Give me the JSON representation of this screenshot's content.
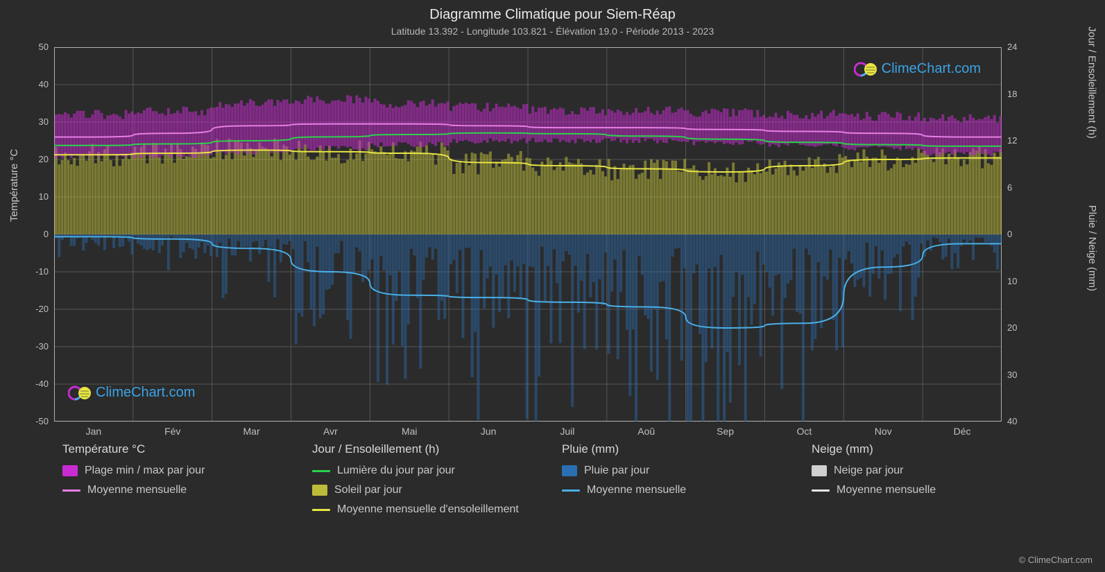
{
  "title": "Diagramme Climatique pour Siem-Réap",
  "subtitle": "Latitude 13.392 - Longitude 103.821 - Élévation 19.0 - Période 2013 - 2023",
  "axis_left_label": "Température °C",
  "axis_right_top_label": "Jour / Ensoleillement (h)",
  "axis_right_bot_label": "Pluie / Neige (mm)",
  "brand_text": "ClimeChart.com",
  "copyright": "© ClimeChart.com",
  "chart": {
    "background": "#2b2b2b",
    "plot_bg": "#2b2b2b",
    "grid_color": "#8a8a8a",
    "grid_opacity": 0.45,
    "border_color": "#b0b0b0",
    "text_color": "#c8c8c8",
    "months": [
      "Jan",
      "Fév",
      "Mar",
      "Avr",
      "Mai",
      "Jun",
      "Juil",
      "Aoû",
      "Sep",
      "Oct",
      "Nov",
      "Déc"
    ],
    "y_left": {
      "min": -50,
      "max": 50,
      "step": 10
    },
    "y_right_top": {
      "min": 0,
      "max": 24,
      "step": 6
    },
    "y_right_bot": {
      "min": 0,
      "max": 40,
      "step": 10
    },
    "series": {
      "temp_range": {
        "min": [
          21,
          21,
          22,
          23,
          24,
          25,
          25,
          25,
          24.5,
          24,
          23,
          21.5
        ],
        "max": [
          32,
          33,
          35,
          36,
          35,
          34,
          33,
          33,
          32.5,
          32,
          31.5,
          31
        ],
        "fill": "#c92bd3",
        "opacity": 0.55
      },
      "temp_mean": {
        "values": [
          26,
          27,
          29,
          29.5,
          29.5,
          29,
          28.5,
          28.5,
          28,
          27.5,
          27,
          26
        ],
        "color": "#e77fe4",
        "width": 2
      },
      "daylight": {
        "values": [
          11.4,
          11.6,
          12.0,
          12.5,
          12.8,
          13.0,
          12.9,
          12.6,
          12.2,
          11.8,
          11.5,
          11.3
        ],
        "color": "#2bd34a",
        "width": 2
      },
      "sun_fill": {
        "values": [
          10.2,
          10.4,
          10.8,
          10.6,
          10.4,
          9.2,
          8.8,
          8.4,
          8.0,
          8.8,
          9.6,
          9.8
        ],
        "fill": "#bdbb3a",
        "opacity": 0.55
      },
      "sun_mean": {
        "values": [
          10.2,
          10.4,
          10.8,
          10.6,
          10.4,
          9.2,
          8.8,
          8.4,
          8.0,
          8.8,
          9.6,
          9.8
        ],
        "color": "#e8e644",
        "width": 2
      },
      "rain_fill": {
        "max_daily": [
          5,
          8,
          18,
          28,
          45,
          48,
          52,
          55,
          70,
          60,
          30,
          10
        ],
        "fill": "#2b6fb3",
        "opacity": 0.45
      },
      "rain_mean": {
        "values": [
          0.5,
          1,
          3,
          8,
          13,
          13.5,
          14.5,
          15.5,
          20,
          19,
          7,
          2
        ],
        "color": "#4ab0e8",
        "width": 2
      }
    }
  },
  "legend": {
    "cols": [
      {
        "head": "Température °C",
        "items": [
          {
            "kind": "swatch",
            "color": "#c92bd3",
            "label": "Plage min / max par jour"
          },
          {
            "kind": "line",
            "color": "#e77fe4",
            "label": "Moyenne mensuelle"
          }
        ]
      },
      {
        "head": "Jour / Ensoleillement (h)",
        "items": [
          {
            "kind": "line",
            "color": "#2bd34a",
            "label": "Lumière du jour par jour"
          },
          {
            "kind": "swatch",
            "color": "#bdbb3a",
            "label": "Soleil par jour"
          },
          {
            "kind": "line",
            "color": "#e8e644",
            "label": "Moyenne mensuelle d'ensoleillement"
          }
        ]
      },
      {
        "head": "Pluie (mm)",
        "items": [
          {
            "kind": "swatch",
            "color": "#2b6fb3",
            "label": "Pluie par jour"
          },
          {
            "kind": "line",
            "color": "#4ab0e8",
            "label": "Moyenne mensuelle"
          }
        ]
      },
      {
        "head": "Neige (mm)",
        "items": [
          {
            "kind": "swatch",
            "color": "#d0d0d0",
            "label": "Neige par jour"
          },
          {
            "kind": "line",
            "color": "#e8e8e8",
            "label": "Moyenne mensuelle"
          }
        ]
      }
    ]
  },
  "brand_colors": {
    "ring": "#c92bd3",
    "globe": "#e8e644",
    "text": "#3ba4e6"
  }
}
